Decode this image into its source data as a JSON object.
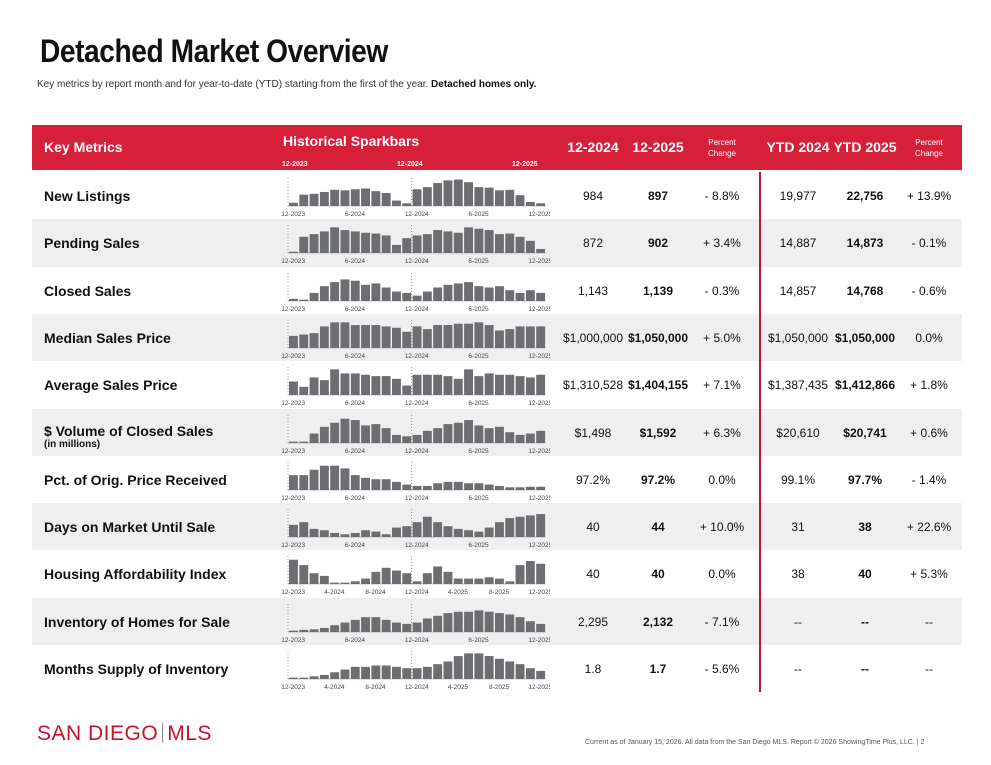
{
  "header": {
    "title": "Detached Market Overview",
    "subtitle": "Key metrics by report month and for year-to-date (YTD) starting from the first of the year.",
    "subtitle_bold": "Detached homes only."
  },
  "table": {
    "columns": [
      "Key Metrics",
      "Historical Sparkbars",
      "12-2024",
      "12-2025",
      "Percent Change",
      "YTD 2024",
      "YTD 2025",
      "Percent Change"
    ],
    "header_spark_labels": [
      "12-2023",
      "12-2024",
      "12-2025"
    ],
    "rows": [
      {
        "metric": "New Listings",
        "values": [
          "984",
          "897",
          "- 8.8%",
          "19,977",
          "22,756",
          "+ 13.9%"
        ],
        "spark_labels": [
          "12-2023",
          "6-2024",
          "12-2024",
          "6-2025",
          "12-2025"
        ],
        "sparkbars": [
          12,
          42,
          45,
          52,
          60,
          58,
          62,
          65,
          55,
          48,
          20,
          10,
          62,
          70,
          85,
          95,
          98,
          88,
          70,
          68,
          58,
          60,
          40,
          15,
          10
        ]
      },
      {
        "metric": "Pending Sales",
        "values": [
          "872",
          "902",
          "+ 3.4%",
          "14,887",
          "14,873",
          "- 0.1%"
        ],
        "spark_labels": [
          "12-2023",
          "6-2024",
          "12-2024",
          "6-2025",
          "12-2025"
        ],
        "sparkbars": [
          5,
          60,
          70,
          80,
          95,
          85,
          80,
          75,
          72,
          65,
          30,
          55,
          65,
          70,
          85,
          80,
          75,
          95,
          90,
          85,
          70,
          72,
          60,
          45,
          15
        ]
      },
      {
        "metric": "Closed Sales",
        "values": [
          "1,143",
          "1,139",
          "- 0.3%",
          "14,857",
          "14,768",
          "- 0.6%"
        ],
        "spark_labels": [
          "12-2023",
          "6-2024",
          "12-2024",
          "6-2025",
          "12-2025"
        ],
        "sparkbars": [
          8,
          5,
          30,
          55,
          70,
          80,
          75,
          60,
          65,
          50,
          35,
          30,
          20,
          35,
          50,
          60,
          65,
          70,
          55,
          50,
          55,
          40,
          30,
          40,
          30
        ]
      },
      {
        "metric": "Median Sales Price",
        "values": [
          "$1,000,000",
          "$1,050,000",
          "+ 5.0%",
          "$1,050,000",
          "$1,050,000",
          "0.0%"
        ],
        "spark_labels": [
          "12-2023",
          "6-2024",
          "12-2024",
          "6-2025",
          "12-2025"
        ],
        "sparkbars": [
          45,
          50,
          55,
          80,
          95,
          95,
          85,
          85,
          85,
          80,
          75,
          60,
          80,
          70,
          85,
          85,
          90,
          90,
          95,
          85,
          65,
          70,
          80,
          80,
          80
        ]
      },
      {
        "metric": "Average Sales Price",
        "values": [
          "$1,310,528",
          "$1,404,155",
          "+ 7.1%",
          "$1,387,435",
          "$1,412,866",
          "+ 1.8%"
        ],
        "spark_labels": [
          "12-2023",
          "6-2024",
          "12-2024",
          "6-2025",
          "12-2025"
        ],
        "sparkbars": [
          50,
          30,
          65,
          55,
          95,
          80,
          80,
          75,
          70,
          70,
          60,
          35,
          75,
          75,
          75,
          70,
          60,
          95,
          70,
          80,
          75,
          75,
          70,
          65,
          75
        ]
      },
      {
        "metric": "$ Volume of Closed Sales",
        "sub": "(in millions)",
        "values": [
          "$1,498",
          "$1,592",
          "+ 6.3%",
          "$20,610",
          "$20,741",
          "+ 0.6%"
        ],
        "spark_labels": [
          "12-2023",
          "6-2024",
          "12-2024",
          "6-2025",
          "12-2025"
        ],
        "sparkbars": [
          5,
          5,
          35,
          60,
          75,
          90,
          85,
          65,
          70,
          55,
          30,
          25,
          30,
          45,
          55,
          70,
          75,
          85,
          65,
          55,
          60,
          40,
          30,
          35,
          45
        ]
      },
      {
        "metric": "Pct. of Orig. Price Received",
        "values": [
          "97.2%",
          "97.2%",
          "0.0%",
          "99.1%",
          "97.7%",
          "- 1.4%"
        ],
        "spark_labels": [
          "12-2023",
          "6-2024",
          "12-2024",
          "6-2025",
          "12-2025"
        ],
        "sparkbars": [
          55,
          55,
          75,
          90,
          90,
          80,
          55,
          45,
          40,
          40,
          30,
          20,
          15,
          15,
          25,
          30,
          30,
          25,
          25,
          20,
          15,
          10,
          10,
          12,
          12
        ]
      },
      {
        "metric": "Days on Market Until Sale",
        "values": [
          "40",
          "44",
          "+ 10.0%",
          "31",
          "38",
          "+ 22.6%"
        ],
        "spark_labels": [
          "12-2023",
          "6-2024",
          "12-2024",
          "6-2025",
          "12-2025"
        ],
        "sparkbars": [
          45,
          55,
          30,
          25,
          15,
          10,
          15,
          25,
          20,
          10,
          35,
          40,
          55,
          75,
          55,
          40,
          30,
          25,
          20,
          35,
          55,
          70,
          75,
          80,
          85
        ]
      },
      {
        "metric": "Housing Affordability Index",
        "values": [
          "40",
          "40",
          "0.0%",
          "38",
          "40",
          "+ 5.3%"
        ],
        "spark_labels": [
          "12-2023",
          "4-2024",
          "8-2024",
          "12-2024",
          "4-2025",
          "8-2025",
          "12-2025"
        ],
        "sparkbars": [
          90,
          70,
          40,
          30,
          5,
          5,
          10,
          20,
          45,
          60,
          50,
          40,
          10,
          40,
          65,
          45,
          20,
          20,
          20,
          25,
          20,
          10,
          70,
          85,
          75
        ]
      },
      {
        "metric": "Inventory of Homes for Sale",
        "values": [
          "2,295",
          "2,132",
          "- 7.1%",
          "--",
          "--",
          "--"
        ],
        "spark_labels": [
          "12-2023",
          "6-2024",
          "12-2024",
          "6-2025",
          "12-2025"
        ],
        "sparkbars": [
          5,
          8,
          10,
          15,
          25,
          35,
          45,
          55,
          55,
          45,
          35,
          30,
          35,
          50,
          60,
          70,
          75,
          75,
          80,
          75,
          70,
          65,
          55,
          40,
          30
        ]
      },
      {
        "metric": "Months Supply of Inventory",
        "values": [
          "1.8",
          "1.7",
          "- 5.6%",
          "--",
          "--",
          "--"
        ],
        "spark_labels": [
          "12-2023",
          "4-2024",
          "8-2024",
          "12-2024",
          "4-2025",
          "8-2025",
          "12-2025"
        ],
        "sparkbars": [
          5,
          5,
          10,
          15,
          25,
          35,
          45,
          45,
          50,
          50,
          45,
          40,
          40,
          45,
          55,
          65,
          85,
          95,
          95,
          85,
          75,
          65,
          55,
          40,
          30
        ]
      }
    ]
  },
  "footer": {
    "logo_left": "SAN DIEGO",
    "logo_right": "MLS",
    "note": "Current as of January 15, 2026. All data from the San Diego MLS. Report © 2026 ShowingTime Plus, LLC. | 2"
  }
}
